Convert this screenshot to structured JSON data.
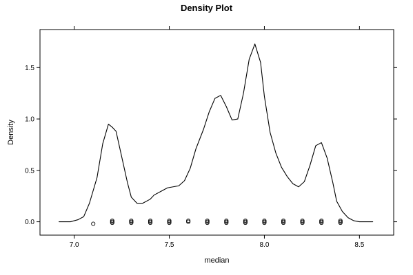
{
  "chart_data": {
    "type": "line",
    "title": "Density Plot",
    "xlabel": "median",
    "ylabel": "Density",
    "xlim": [
      6.82,
      8.68
    ],
    "ylim": [
      -0.13,
      1.87
    ],
    "xticks": [
      7.0,
      7.5,
      8.0,
      8.5
    ],
    "xtick_labels": [
      "7.0",
      "7.5",
      "8.0",
      "8.5"
    ],
    "yticks": [
      0.0,
      0.5,
      1.0,
      1.5
    ],
    "ytick_labels": [
      "0.0",
      "0.5",
      "1.0",
      "1.5"
    ],
    "grid": false,
    "legend": "none",
    "series": [
      {
        "type": "line",
        "x": [
          6.92,
          6.95,
          6.98,
          7.02,
          7.05,
          7.08,
          7.12,
          7.15,
          7.18,
          7.2,
          7.22,
          7.25,
          7.28,
          7.3,
          7.33,
          7.36,
          7.4,
          7.42,
          7.46,
          7.49,
          7.52,
          7.55,
          7.58,
          7.61,
          7.64,
          7.68,
          7.71,
          7.74,
          7.77,
          7.8,
          7.83,
          7.86,
          7.89,
          7.92,
          7.95,
          7.98,
          8.0,
          8.03,
          8.06,
          8.09,
          8.12,
          8.15,
          8.18,
          8.21,
          8.24,
          8.27,
          8.3,
          8.33,
          8.36,
          8.38,
          8.41,
          8.44,
          8.47,
          8.5,
          8.53,
          8.57
        ],
        "y": [
          0.0,
          0.0,
          0.0,
          0.02,
          0.05,
          0.18,
          0.43,
          0.76,
          0.95,
          0.92,
          0.88,
          0.63,
          0.38,
          0.24,
          0.18,
          0.18,
          0.22,
          0.26,
          0.3,
          0.33,
          0.34,
          0.35,
          0.4,
          0.52,
          0.71,
          0.9,
          1.07,
          1.2,
          1.23,
          1.12,
          0.99,
          1.0,
          1.25,
          1.58,
          1.73,
          1.55,
          1.22,
          0.87,
          0.67,
          0.53,
          0.44,
          0.37,
          0.34,
          0.39,
          0.55,
          0.74,
          0.77,
          0.62,
          0.38,
          0.2,
          0.1,
          0.04,
          0.01,
          0.0,
          0.0,
          0.0
        ]
      },
      {
        "type": "rug",
        "x": [
          7.1,
          7.2,
          7.2,
          7.2,
          7.3,
          7.3,
          7.3,
          7.4,
          7.4,
          7.4,
          7.5,
          7.5,
          7.5,
          7.6,
          7.6,
          7.7,
          7.7,
          7.7,
          7.8,
          7.8,
          7.8,
          7.9,
          7.9,
          7.9,
          8.0,
          8.0,
          8.0,
          8.1,
          8.1,
          8.1,
          8.2,
          8.2,
          8.2,
          8.3,
          8.3,
          8.3,
          8.4,
          8.4,
          8.4
        ],
        "y": [
          -0.02,
          0.0,
          0.01,
          -0.01,
          0.0,
          0.01,
          -0.01,
          0.0,
          0.01,
          -0.01,
          0.0,
          0.01,
          -0.01,
          0.0,
          0.01,
          0.0,
          0.01,
          -0.01,
          0.0,
          0.01,
          -0.01,
          0.0,
          0.01,
          -0.01,
          0.0,
          0.01,
          -0.01,
          0.0,
          0.01,
          -0.01,
          0.0,
          0.01,
          -0.01,
          0.0,
          0.01,
          -0.01,
          0.0,
          0.01,
          -0.01
        ]
      }
    ]
  }
}
